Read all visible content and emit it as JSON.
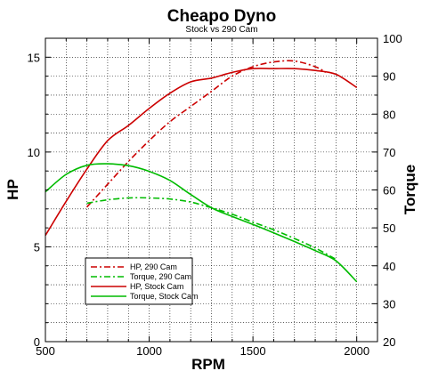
{
  "chart_data": {
    "type": "line",
    "title": "Cheapo Dyno",
    "subtitle": "Stock vs 290 Cam",
    "xlabel": "RPM",
    "ylabel_left": "HP",
    "ylabel_right": "Torque",
    "xlim": [
      500,
      2100
    ],
    "ylim_left": [
      0,
      16
    ],
    "ylim_right": [
      20,
      100
    ],
    "xticks": [
      500,
      1000,
      1500,
      2000
    ],
    "yticks_left": [
      0,
      5,
      10,
      15
    ],
    "yticks_right": [
      20,
      30,
      40,
      50,
      60,
      70,
      80,
      90,
      100
    ],
    "grid": true,
    "legend_position": "lower-left",
    "series": [
      {
        "name": "HP, 290 Cam",
        "axis": "left",
        "color": "#cc0000",
        "dash": "dash-dot",
        "x": [
          700,
          800,
          900,
          1000,
          1100,
          1200,
          1300,
          1400,
          1500,
          1600,
          1700,
          1800,
          1850
        ],
        "y": [
          7.1,
          8.3,
          9.5,
          10.6,
          11.6,
          12.4,
          13.2,
          14.0,
          14.5,
          14.75,
          14.8,
          14.5,
          14.2
        ]
      },
      {
        "name": "Torque, 290 Cam",
        "axis": "right",
        "color": "#00bb00",
        "dash": "dash-dot",
        "x": [
          700,
          800,
          900,
          1000,
          1100,
          1200,
          1300,
          1400,
          1500,
          1600,
          1700,
          1800,
          1900
        ],
        "y": [
          56.5,
          57.4,
          57.9,
          57.9,
          57.6,
          56.8,
          55.3,
          53.6,
          51.5,
          49.5,
          47.2,
          44.7,
          41.7
        ]
      },
      {
        "name": "HP, Stock Cam",
        "axis": "left",
        "color": "#cc0000",
        "dash": "solid",
        "x": [
          500,
          600,
          700,
          800,
          900,
          1000,
          1100,
          1200,
          1300,
          1400,
          1500,
          1600,
          1700,
          1800,
          1900,
          2000
        ],
        "y": [
          5.6,
          7.4,
          9.1,
          10.6,
          11.4,
          12.3,
          13.1,
          13.7,
          13.9,
          14.2,
          14.4,
          14.4,
          14.4,
          14.3,
          14.1,
          13.4
        ]
      },
      {
        "name": "Torque, Stock Cam",
        "axis": "right",
        "color": "#00bb00",
        "dash": "solid",
        "x": [
          500,
          600,
          700,
          800,
          900,
          1000,
          1100,
          1200,
          1300,
          1400,
          1500,
          1600,
          1700,
          1800,
          1900,
          2000
        ],
        "y": [
          59.5,
          64.1,
          66.5,
          66.9,
          66.4,
          64.9,
          62.5,
          58.8,
          55.3,
          53.0,
          50.9,
          48.7,
          46.4,
          44.0,
          41.3,
          35.8
        ]
      }
    ]
  }
}
